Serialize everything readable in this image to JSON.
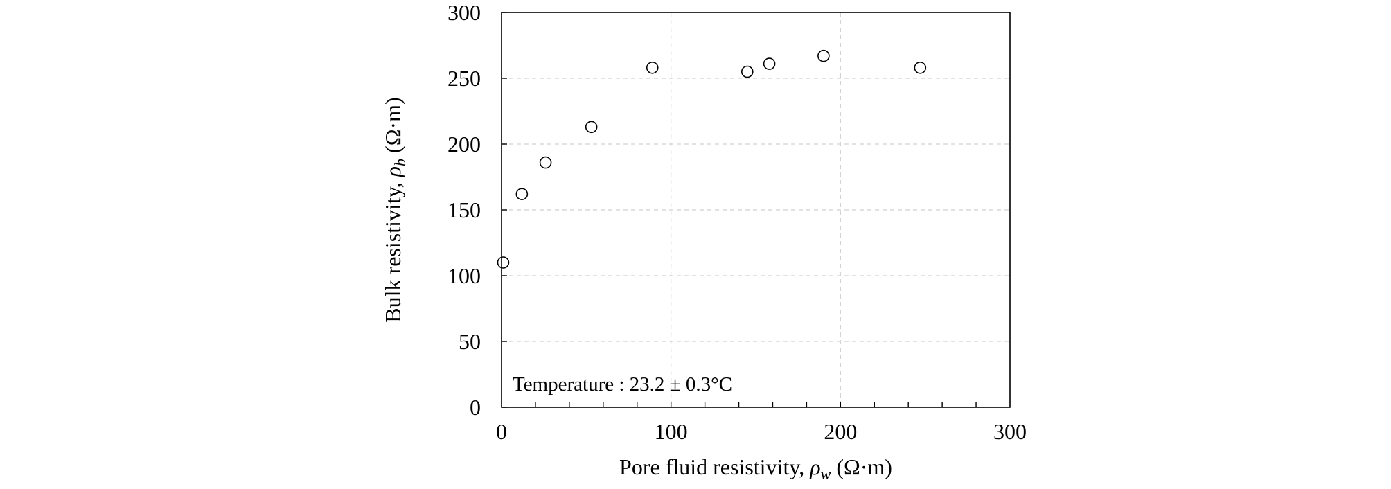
{
  "chart_data": {
    "type": "scatter",
    "xlabel": {
      "prefix": "Pore fluid resistivity, ",
      "symbol": "ρ",
      "subscript": "w",
      "unit": " (Ω·m)"
    },
    "ylabel": {
      "prefix": "Bulk resistivity, ",
      "symbol": "ρ",
      "subscript": "b",
      "unit": " (Ω·m)"
    },
    "xlim": [
      0,
      300
    ],
    "ylim": [
      0,
      300
    ],
    "xticks": [
      0,
      100,
      200,
      300
    ],
    "yticks": [
      0,
      50,
      100,
      150,
      200,
      250,
      300
    ],
    "x_minor_step": 20,
    "grid": true,
    "grid_style": "dashed",
    "marker": "open-circle",
    "annotation": "Temperature : 23.2 ± 0.3°C",
    "annotation_position": "bottom-left",
    "points": [
      {
        "x": 1,
        "y": 110
      },
      {
        "x": 12,
        "y": 162
      },
      {
        "x": 26,
        "y": 186
      },
      {
        "x": 53,
        "y": 213
      },
      {
        "x": 89,
        "y": 258
      },
      {
        "x": 145,
        "y": 255
      },
      {
        "x": 158,
        "y": 261
      },
      {
        "x": 190,
        "y": 267
      },
      {
        "x": 247,
        "y": 258
      }
    ]
  }
}
